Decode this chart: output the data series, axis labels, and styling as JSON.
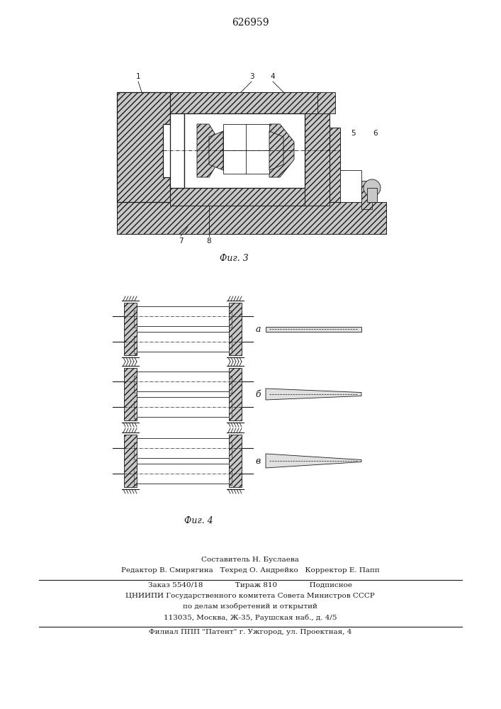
{
  "patent_number": "626959",
  "fig3_caption": "Фиг. 3",
  "fig4_caption": "Фиг. 4",
  "footer_line1": "Составитель Н. Буслаева",
  "footer_line2": "Редактор В. Смирягина   Техред О. Андрейко   Корректор Е. Папп",
  "footer_line3": "Заказ 5540/18              Тираж 810              Подписное",
  "footer_line4": "ЦНИИПИ Государственного комитета Совета Министров СССР",
  "footer_line5": "по делам изобретений и открытий",
  "footer_line6": "113035, Москва, Ж-35, Раушская наб., д. 4/5",
  "footer_line7": "Филиал ППП \"Патент\" г. Ужгород, ул. Проектная, 4",
  "line_color": "#1a1a1a",
  "hatch_color": "#555555",
  "hatch_fill": "#c8c8c8"
}
